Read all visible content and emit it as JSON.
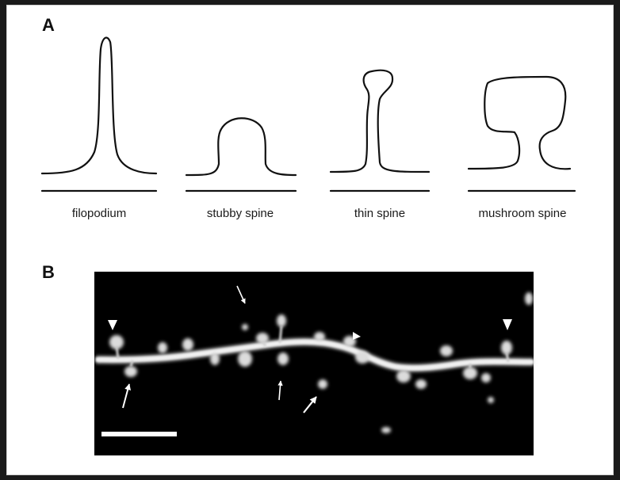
{
  "panel_a": {
    "label": "A",
    "shapes": [
      {
        "id": "filopodium",
        "label": "filopodium"
      },
      {
        "id": "stubby",
        "label": "stubby spine"
      },
      {
        "id": "thin",
        "label": "thin spine"
      },
      {
        "id": "mushroom",
        "label": "mushroom spine"
      }
    ]
  },
  "panel_b": {
    "label": "B",
    "colors": {
      "background": "#000000",
      "dendrite": "#e6e6e6",
      "annotation": "#ffffff"
    }
  }
}
